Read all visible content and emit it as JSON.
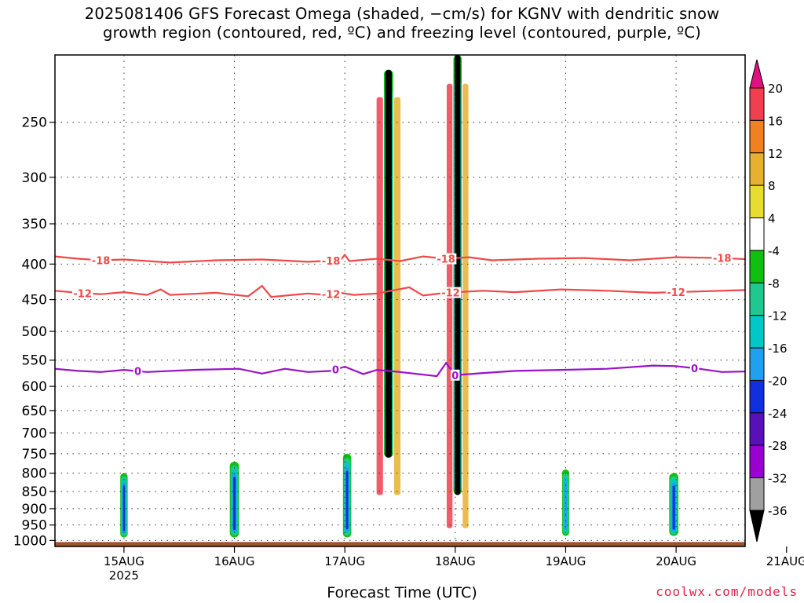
{
  "title_line1": "2025081406 GFS Forecast Omega (shaded, −cm/s) for KGNV with dendritic snow",
  "title_line2": "growth region (contoured, red, ºC) and freezing level (contoured, purple, ºC)",
  "xlabel": "Forecast Time (UTC)",
  "credit": "coolwx.com/models",
  "chart_data": {
    "type": "heatmap",
    "title": "2025081406 GFS Forecast Omega (shaded, −cm/s) for KGNV with dendritic snow growth region (contoured, red, ºC) and freezing level (contoured, purple, ºC)",
    "xlabel": "Forecast Time (UTC)",
    "ylabel": "",
    "x_range_hours_after_15AUG00": [
      -15,
      135
    ],
    "y_axis": "pressure (hPa), log scale, inverted",
    "ylim": [
      1020,
      200
    ],
    "y_ticks": [
      250,
      300,
      350,
      400,
      450,
      500,
      550,
      600,
      650,
      700,
      750,
      800,
      850,
      900,
      950,
      1000
    ],
    "x_ticks": [
      {
        "label": "15AUG",
        "sublabel": "2025",
        "hour": 0
      },
      {
        "label": "16AUG",
        "sublabel": "",
        "hour": 24
      },
      {
        "label": "17AUG",
        "sublabel": "",
        "hour": 48
      },
      {
        "label": "18AUG",
        "sublabel": "",
        "hour": 72
      },
      {
        "label": "19AUG",
        "sublabel": "",
        "hour": 96
      },
      {
        "label": "20AUG",
        "sublabel": "",
        "hour": 120
      },
      {
        "label": "21AUG",
        "sublabel": "",
        "hour": 144
      }
    ],
    "grid": true,
    "colorbar": {
      "levels": [
        -36,
        -32,
        -28,
        -24,
        -20,
        -16,
        -12,
        -8,
        -4,
        4,
        8,
        12,
        16,
        20
      ],
      "labels": [
        "20",
        "16",
        "12",
        "8",
        "4",
        "-4",
        "-8",
        "-12",
        "-16",
        "-20",
        "-24",
        "-28",
        "-32",
        "-36"
      ],
      "colors": [
        "#000000",
        "#a0a0a0",
        "#9a00d0",
        "#5a10b8",
        "#1030e0",
        "#20a0f0",
        "#00c8c8",
        "#20c890",
        "#10c010",
        "#ffffff",
        "#e8dc30",
        "#e8b030",
        "#f08020",
        "#f04050",
        "#e01080"
      ]
    },
    "contours": [
      {
        "name": "-18",
        "color": "#f04848",
        "label_hours": [
          -5,
          45,
          70,
          130
        ],
        "points": [
          [
            -15,
            390
          ],
          [
            -10,
            393
          ],
          [
            -5,
            395
          ],
          [
            0,
            394
          ],
          [
            10,
            398
          ],
          [
            20,
            395
          ],
          [
            30,
            394
          ],
          [
            40,
            397
          ],
          [
            47,
            395
          ],
          [
            48,
            388
          ],
          [
            49,
            396
          ],
          [
            55,
            393
          ],
          [
            60,
            396
          ],
          [
            65,
            390
          ],
          [
            70,
            393
          ],
          [
            75,
            391
          ],
          [
            80,
            395
          ],
          [
            90,
            393
          ],
          [
            100,
            392
          ],
          [
            110,
            395
          ],
          [
            120,
            391
          ],
          [
            130,
            392
          ],
          [
            140,
            395
          ],
          [
            150,
            396
          ],
          [
            155,
            398
          ],
          [
            160,
            397
          ]
        ]
      },
      {
        "name": "-12",
        "color": "#f04848",
        "label_hours": [
          -9,
          45,
          71,
          120
        ],
        "points": [
          [
            -15,
            437
          ],
          [
            -10,
            440
          ],
          [
            -5,
            442
          ],
          [
            0,
            439
          ],
          [
            5,
            443
          ],
          [
            8,
            435
          ],
          [
            10,
            443
          ],
          [
            20,
            440
          ],
          [
            27,
            445
          ],
          [
            30,
            430
          ],
          [
            32,
            446
          ],
          [
            40,
            441
          ],
          [
            44,
            443
          ],
          [
            47,
            440
          ],
          [
            50,
            443
          ],
          [
            55,
            441
          ],
          [
            62,
            432
          ],
          [
            65,
            444
          ],
          [
            70,
            440
          ],
          [
            78,
            437
          ],
          [
            85,
            439
          ],
          [
            95,
            435
          ],
          [
            105,
            437
          ],
          [
            115,
            440
          ],
          [
            125,
            438
          ],
          [
            135,
            436
          ],
          [
            145,
            437
          ],
          [
            155,
            440
          ],
          [
            160,
            445
          ]
        ]
      },
      {
        "name": "0",
        "color": "#9b10c8",
        "label_hours": [
          3,
          46,
          72,
          124
        ],
        "points": [
          [
            -15,
            566
          ],
          [
            -10,
            570
          ],
          [
            -5,
            572
          ],
          [
            0,
            568
          ],
          [
            5,
            572
          ],
          [
            15,
            568
          ],
          [
            25,
            566
          ],
          [
            30,
            575
          ],
          [
            35,
            566
          ],
          [
            40,
            572
          ],
          [
            45,
            570
          ],
          [
            48,
            562
          ],
          [
            52,
            576
          ],
          [
            55,
            568
          ],
          [
            60,
            572
          ],
          [
            68,
            580
          ],
          [
            70,
            555
          ],
          [
            72,
            578
          ],
          [
            78,
            574
          ],
          [
            85,
            570
          ],
          [
            95,
            568
          ],
          [
            105,
            566
          ],
          [
            115,
            560
          ],
          [
            120,
            561
          ],
          [
            125,
            566
          ],
          [
            130,
            572
          ],
          [
            135,
            571
          ],
          [
            140,
            568
          ],
          [
            145,
            567
          ],
          [
            150,
            570
          ],
          [
            155,
            575
          ],
          [
            160,
            578
          ]
        ]
      }
    ],
    "omega_features": [
      {
        "desc": "strong ascent column",
        "hour_center": 57.5,
        "width_hours": 2.0,
        "p_top": 210,
        "p_bottom": 760,
        "min_value": -36
      },
      {
        "desc": "strong ascent column",
        "hour_center": 72.5,
        "width_hours": 1.8,
        "p_top": 200,
        "p_bottom": 860,
        "min_value": -36
      },
      {
        "desc": "low-level ascent",
        "hour_center": 0,
        "width_hours": 1.6,
        "p_top": 800,
        "p_bottom": 990,
        "min_value": -20
      },
      {
        "desc": "low-level ascent",
        "hour_center": 24,
        "width_hours": 2.0,
        "p_top": 770,
        "p_bottom": 990,
        "min_value": -20
      },
      {
        "desc": "low-level ascent",
        "hour_center": 48.5,
        "width_hours": 1.8,
        "p_top": 750,
        "p_bottom": 990,
        "min_value": -20
      },
      {
        "desc": "low-level ascent",
        "hour_center": 96,
        "width_hours": 1.5,
        "p_top": 790,
        "p_bottom": 985,
        "min_value": -16
      },
      {
        "desc": "low-level ascent",
        "hour_center": 119.5,
        "width_hours": 2.0,
        "p_top": 800,
        "p_bottom": 985,
        "min_value": -20
      },
      {
        "desc": "low-level ascent",
        "hour_center": 144.5,
        "width_hours": 1.2,
        "p_top": 830,
        "p_bottom": 985,
        "min_value": -12
      },
      {
        "desc": "low-level ascent",
        "hour_center": 154.5,
        "width_hours": 1.2,
        "p_top": 760,
        "p_bottom": 985,
        "min_value": -16
      }
    ],
    "surface": {
      "color": "#a0522d",
      "p": 1005
    }
  }
}
